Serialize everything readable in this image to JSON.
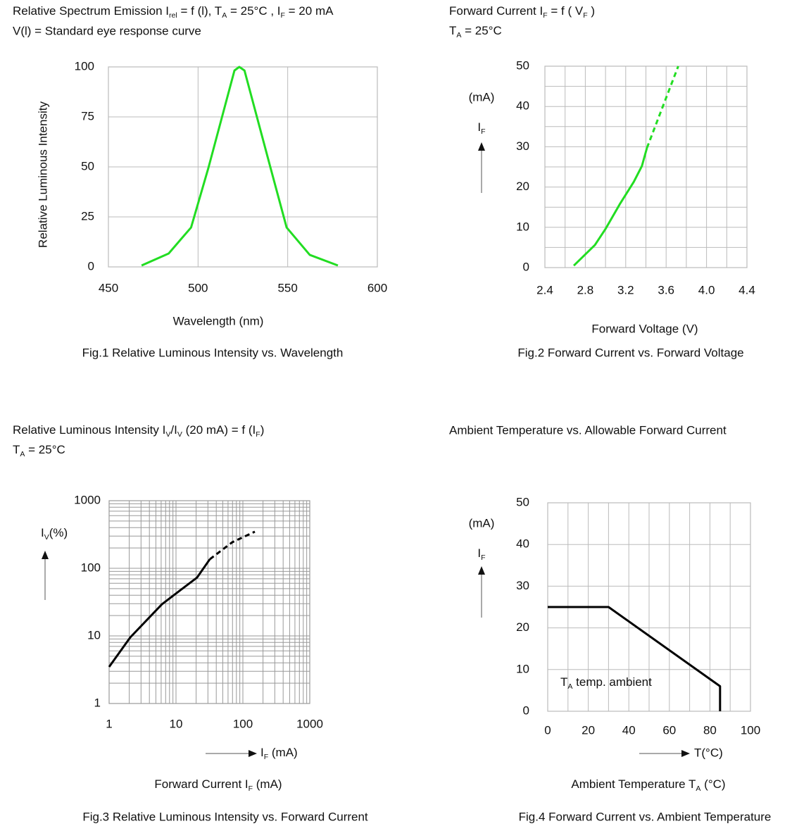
{
  "chart_data": [
    {
      "type": "line",
      "title": [
        "Relative Spectrum Emission I",
        {
          "sub": "rel"
        },
        " = f (l), T",
        {
          "sub": "A"
        },
        " = 25°C , I",
        {
          "sub": "F"
        },
        " = 20 mA"
      ],
      "subtitle": "V(l) = Standard eye response curve",
      "xlabel": "Wavelength (nm)",
      "ylabel": "Relative Luminous Intensity",
      "caption": "Fig.1 Relative Luminous Intensity vs. Wavelength",
      "xlim": [
        450,
        600
      ],
      "ylim": [
        0,
        100
      ],
      "xticks": [
        450,
        500,
        550,
        600
      ],
      "yticks": [
        0,
        25,
        50,
        75,
        100
      ],
      "grid": true,
      "series": [
        {
          "color": "#22dd22",
          "dashed": false,
          "x": [
            468.5,
            483.6,
            496.1,
            505.8,
            520.3,
            523,
            525.9,
            540.4,
            549.4,
            562.3,
            578
          ],
          "values": [
            0.7,
            6.7,
            19.7,
            49.6,
            98.2,
            100,
            98.2,
            49.6,
            19.7,
            6,
            0.7
          ]
        }
      ]
    },
    {
      "type": "line",
      "title": [
        "Forward Current I",
        {
          "sub": "F"
        },
        " = f ( V",
        {
          "sub": "F"
        },
        " )"
      ],
      "subtitle": [
        "T",
        {
          "sub": "A"
        },
        " = 25°C"
      ],
      "xlabel": "Forward Voltage (V)",
      "y_unit": "(mA)",
      "ylabel": [
        "I",
        {
          "sub": "F"
        }
      ],
      "caption": "Fig.2 Forward Current vs. Forward Voltage",
      "xlim": [
        2.4,
        4.4
      ],
      "ylim": [
        0,
        50
      ],
      "xticks": [
        2.4,
        2.8,
        3.2,
        3.6,
        {
          "value": 4,
          "label": "4.0"
        },
        4.4
      ],
      "yticks": [
        0,
        10,
        20,
        30,
        40,
        50
      ],
      "grid": true,
      "xgrid": [
        2.4,
        2.6,
        2.8,
        3,
        3.2,
        3.4,
        3.6,
        3.8,
        4,
        4.2,
        4.4
      ],
      "ygrid": [
        0,
        5,
        10,
        15,
        20,
        25,
        30,
        35,
        40,
        45,
        50
      ],
      "series": [
        {
          "color": "#22dd22",
          "dashed": false,
          "x": [
            2.686,
            2.895,
            3.0,
            3.14,
            3.28,
            3.36,
            3.41
          ],
          "values": [
            0.5,
            5.6,
            9.6,
            15.7,
            21.3,
            25.2,
            29.7
          ]
        },
        {
          "color": "#22dd22",
          "dashed": true,
          "x": [
            3.41,
            3.72
          ],
          "values": [
            29.7,
            50
          ]
        }
      ]
    },
    {
      "type": "line",
      "xscale": "log",
      "yscale": "log",
      "title": [
        "Relative Luminous Intensity I",
        {
          "sub": "V"
        },
        "/I",
        {
          "sub": "V"
        },
        " (20 mA) = f (I",
        {
          "sub": "F"
        },
        ")"
      ],
      "subtitle": [
        "T",
        {
          "sub": "A"
        },
        " = 25°C"
      ],
      "ylabel": [
        "I",
        {
          "sub": "V"
        },
        "(%)"
      ],
      "xlabel_arrow": [
        "I",
        {
          "sub": "F"
        },
        " (mA)"
      ],
      "xlabel": [
        "Forward Current I",
        {
          "sub": "F"
        },
        " (mA)"
      ],
      "caption": "Fig.3 Relative Luminous Intensity vs. Forward Current",
      "xlim": [
        1,
        1000
      ],
      "ylim": [
        1,
        1000
      ],
      "xticks": [
        1,
        10,
        100,
        1000
      ],
      "yticks": [
        1,
        10,
        100,
        1000
      ],
      "grid": true,
      "xgrid": [
        1,
        2,
        3,
        4,
        5,
        6,
        7,
        8,
        9,
        10,
        20,
        30,
        40,
        50,
        60,
        70,
        80,
        90,
        100,
        200,
        300,
        400,
        500,
        600,
        700,
        800,
        900,
        1000
      ],
      "ygrid": [
        1,
        2,
        3,
        4,
        5,
        6,
        7,
        8,
        9,
        10,
        20,
        30,
        40,
        50,
        60,
        70,
        80,
        90,
        100,
        200,
        300,
        400,
        500,
        600,
        700,
        800,
        900,
        1000
      ],
      "series": [
        {
          "color": "#000000",
          "dashed": false,
          "x": [
            1,
            2.07,
            6.16,
            20.7,
            32
          ],
          "values": [
            3.48,
            9.5,
            29.4,
            73.2,
            136
          ]
        },
        {
          "color": "#000000",
          "dashed": true,
          "x": [
            32,
            69.5,
            151
          ],
          "values": [
            136,
            243,
            348
          ]
        }
      ]
    },
    {
      "type": "line",
      "title": "Ambient Temperature vs. Allowable Forward Current",
      "y_unit": "(mA)",
      "ylabel": [
        "I",
        {
          "sub": "F"
        }
      ],
      "xlabel_arrow": "T(°C)",
      "xlabel": [
        "Ambient Temperature T",
        {
          "sub": "A"
        },
        " (°C)"
      ],
      "annotation": [
        "T",
        {
          "sub": "A"
        },
        " temp. ambient"
      ],
      "caption": "Fig.4 Forward Current vs. Ambient Temperature",
      "xlim": [
        0,
        100
      ],
      "ylim": [
        0,
        50
      ],
      "xticks": [
        0,
        20,
        40,
        60,
        80,
        100
      ],
      "yticks": [
        0,
        10,
        20,
        30,
        40,
        50
      ],
      "grid": true,
      "xgrid": [
        0,
        10,
        20,
        30,
        40,
        50,
        60,
        70,
        80,
        90,
        100
      ],
      "series": [
        {
          "color": "#000000",
          "dashed": false,
          "x": [
            0,
            30,
            85,
            85
          ],
          "values": [
            25,
            25,
            6,
            0
          ]
        }
      ]
    }
  ]
}
